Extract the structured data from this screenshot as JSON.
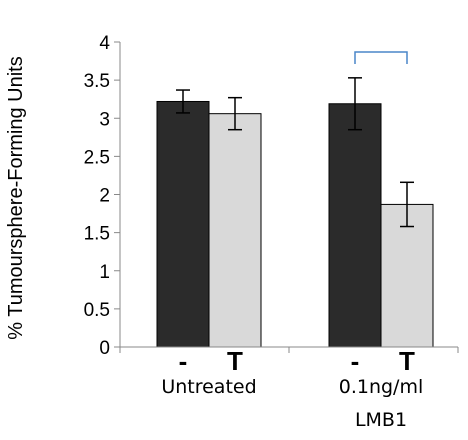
{
  "chart_data": {
    "type": "bar",
    "title": "",
    "xlabel": "",
    "ylabel": "% Tumoursphere-Forming Units",
    "ylim": [
      0,
      4
    ],
    "yticks": [
      "0",
      "0.5",
      "1",
      "1.5",
      "2",
      "2.5",
      "3",
      "3.5",
      "4"
    ],
    "groups": [
      {
        "label_lines": [
          "Untreated"
        ],
        "sublabels": [
          "-",
          "T"
        ]
      },
      {
        "label_lines": [
          "0.1ng/ml",
          "LMB1"
        ],
        "sublabels": [
          "-",
          "T"
        ]
      }
    ],
    "series": [
      {
        "values": [
          3.22,
          3.19
        ],
        "errors": [
          0.15,
          0.34
        ]
      },
      {
        "values": [
          3.06,
          1.87
        ],
        "errors": [
          0.21,
          0.29
        ]
      }
    ],
    "colors": [
      "#2b2b2b",
      "#d9d9d9"
    ],
    "grid": false,
    "annotations": [
      {
        "type": "significance-bracket",
        "group": 1
      }
    ]
  }
}
